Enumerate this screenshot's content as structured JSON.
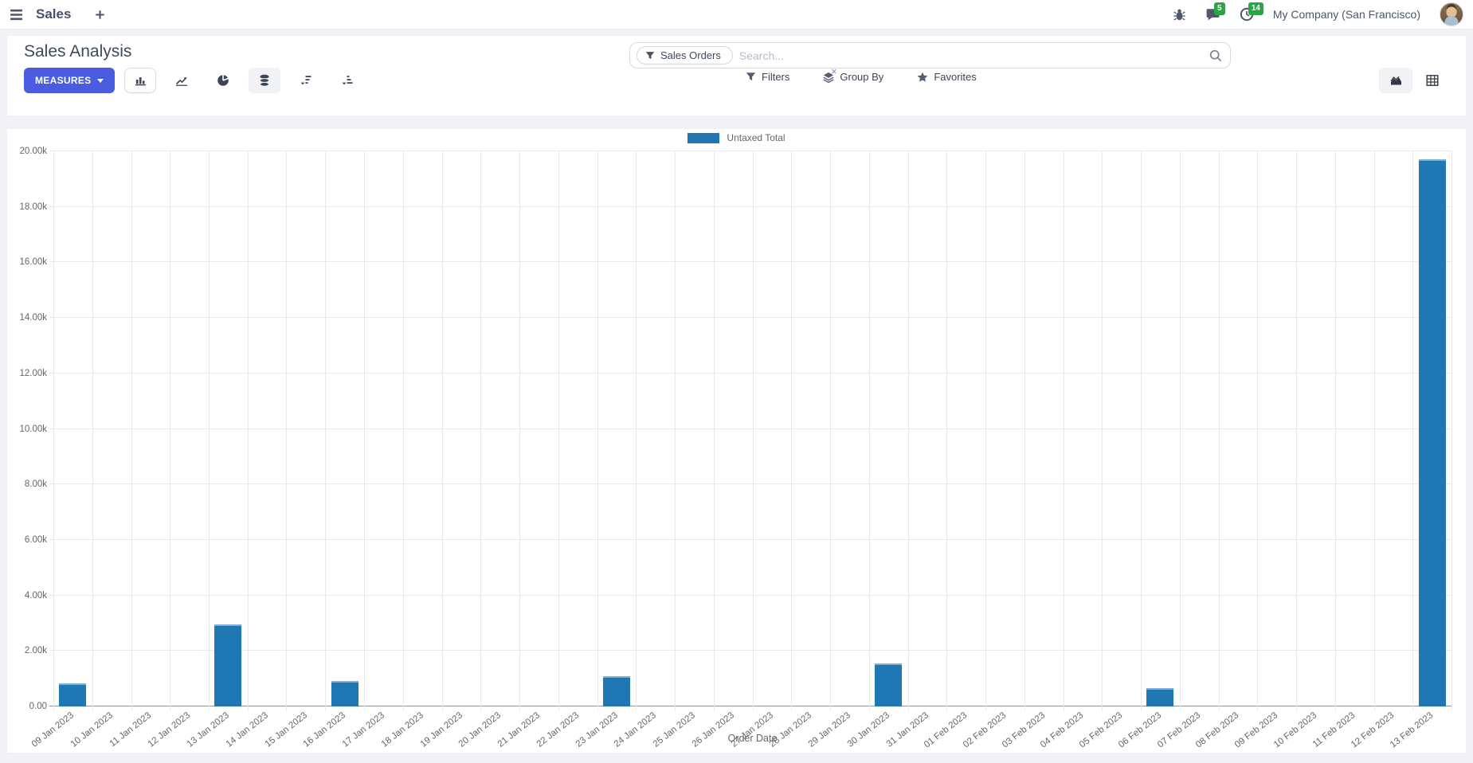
{
  "navbar": {
    "app_menu_label": "Sales",
    "messages_badge": "5",
    "activities_badge": "14",
    "company": "My Company (San Francisco)"
  },
  "control_panel": {
    "title": "Sales Analysis",
    "measures_label": "MEASURES",
    "search": {
      "facet": "Sales Orders",
      "facet_remove": "×",
      "placeholder": "Search..."
    },
    "filters_label": "Filters",
    "group_by_label": "Group By",
    "favorites_label": "Favorites"
  },
  "chart_data": {
    "type": "bar",
    "legend": "Untaxed Total",
    "legend_position": "top",
    "xlabel": "Order Date",
    "ylabel": "",
    "ylim": [
      0,
      20000
    ],
    "grid": true,
    "bar_color": "#1f77b4",
    "y_ticks": [
      "0.00",
      "2.00k",
      "4.00k",
      "6.00k",
      "8.00k",
      "10.00k",
      "12.00k",
      "14.00k",
      "16.00k",
      "18.00k",
      "20.00k"
    ],
    "categories": [
      "09 Jan 2023",
      "10 Jan 2023",
      "11 Jan 2023",
      "12 Jan 2023",
      "13 Jan 2023",
      "14 Jan 2023",
      "15 Jan 2023",
      "16 Jan 2023",
      "17 Jan 2023",
      "18 Jan 2023",
      "19 Jan 2023",
      "20 Jan 2023",
      "21 Jan 2023",
      "22 Jan 2023",
      "23 Jan 2023",
      "24 Jan 2023",
      "25 Jan 2023",
      "26 Jan 2023",
      "27 Jan 2023",
      "28 Jan 2023",
      "29 Jan 2023",
      "30 Jan 2023",
      "31 Jan 2023",
      "01 Feb 2023",
      "02 Feb 2023",
      "03 Feb 2023",
      "04 Feb 2023",
      "05 Feb 2023",
      "06 Feb 2023",
      "07 Feb 2023",
      "08 Feb 2023",
      "09 Feb 2023",
      "10 Feb 2023",
      "11 Feb 2023",
      "12 Feb 2023",
      "13 Feb 2023"
    ],
    "values": [
      840,
      0,
      0,
      0,
      2950,
      0,
      0,
      930,
      0,
      0,
      0,
      0,
      0,
      0,
      1100,
      0,
      0,
      0,
      0,
      0,
      0,
      1550,
      0,
      0,
      0,
      0,
      0,
      0,
      650,
      0,
      0,
      0,
      0,
      0,
      0,
      19700
    ]
  },
  "colors": {
    "accent": "#4a5de0",
    "bar": "#1f77b4",
    "badge": "#28a745"
  }
}
